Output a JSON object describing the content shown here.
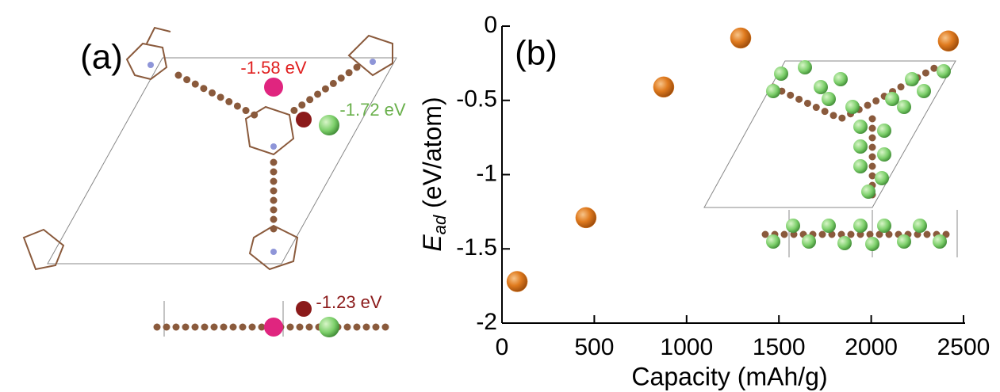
{
  "panel_a": {
    "label": "(a)",
    "annotations": [
      "-1.58 eV",
      "-1.72 eV",
      "-1.23 eV"
    ]
  },
  "chart_data": {
    "type": "scatter",
    "label": "(b)",
    "xlabel": "Capacity (mAh/g)",
    "ylabel": [
      "E",
      "ad",
      " (eV/atom)"
    ],
    "x": [
      82,
      455,
      876,
      1293,
      2418
    ],
    "values": [
      -1.72,
      -1.29,
      -0.41,
      -0.08,
      -0.1
    ],
    "color": "#e07b1f",
    "xlim": [
      0,
      2500
    ],
    "xticks": [
      0,
      500,
      1000,
      1500,
      2000,
      2500
    ],
    "ylim": [
      -2,
      0
    ],
    "yticks": [
      0,
      -0.5,
      -1,
      -1.5,
      -2
    ]
  }
}
